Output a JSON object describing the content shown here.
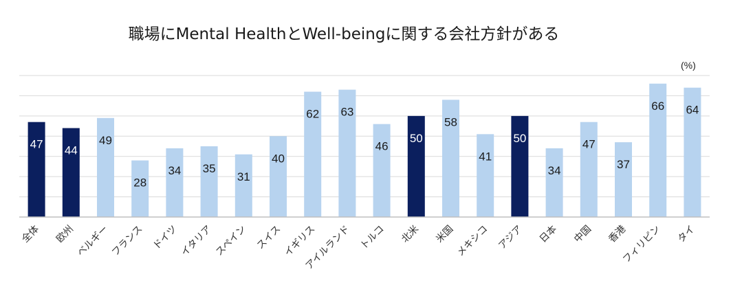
{
  "chart_data": {
    "type": "bar",
    "title": "職場にMental HealthとWell-beingに関する会社方針がある",
    "unit": "(%)",
    "categories": [
      "全体",
      "欧州",
      "ベルギー",
      "フランス",
      "ドイツ",
      "イタリア",
      "スペイン",
      "スイス",
      "イギリス",
      "アイルランド",
      "トルコ",
      "北米",
      "米国",
      "メキシコ",
      "アジア",
      "日本",
      "中国",
      "香港",
      "フィリピン",
      "タイ"
    ],
    "values": [
      47,
      44,
      49,
      28,
      34,
      35,
      31,
      40,
      62,
      63,
      46,
      50,
      58,
      41,
      50,
      34,
      47,
      37,
      66,
      64
    ],
    "highlighted": [
      "全体",
      "欧州",
      "北米",
      "アジア"
    ],
    "ylim": [
      0,
      70
    ],
    "grid": true,
    "colors": {
      "highlight": "#0b1f5e",
      "normal": "#b7d3ef",
      "grid": "#d9d9d9",
      "axis": "#bfbfbf"
    }
  }
}
